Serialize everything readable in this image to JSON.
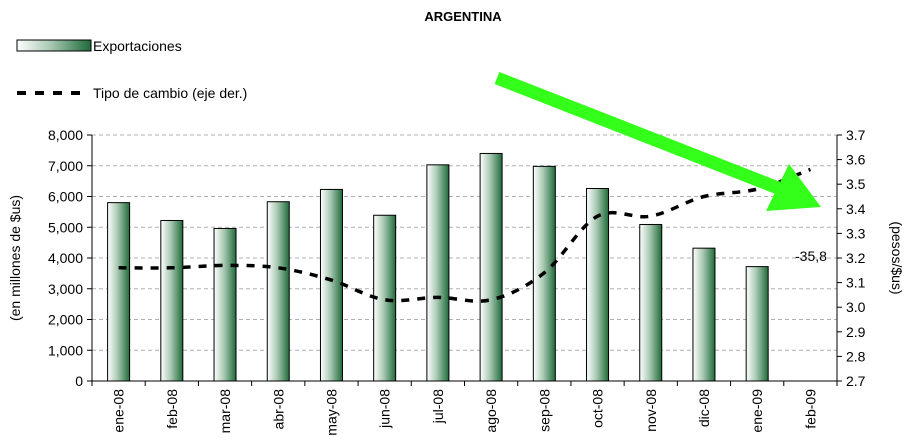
{
  "chart_data": {
    "type": "bar",
    "title": "ARGENTINA",
    "categories": [
      "ene-08",
      "feb-08",
      "mar-08",
      "abr-08",
      "may-08",
      "jun-08",
      "jul-08",
      "ago-08",
      "sep-08",
      "oct-08",
      "nov-08",
      "dic-08",
      "ene-09",
      "feb-09"
    ],
    "series": [
      {
        "name": "Exportaciones",
        "kind": "bar",
        "axis": "left",
        "values": [
          5800,
          5220,
          4960,
          5830,
          6230,
          5390,
          7030,
          7400,
          6980,
          6260,
          5090,
          4320,
          3720,
          null
        ]
      },
      {
        "name": "Tipo de cambio (eje der.)",
        "kind": "line",
        "style": "dashed",
        "axis": "right",
        "values": [
          3.16,
          3.16,
          3.17,
          3.16,
          3.11,
          3.03,
          3.04,
          3.03,
          3.14,
          3.37,
          3.37,
          3.45,
          3.48,
          3.56
        ]
      }
    ],
    "ylabel": "(en millones de $us)",
    "ylabel_right": "(pesos/$us)",
    "ylim": [
      0,
      8000
    ],
    "ylim_right": [
      2.7,
      3.7
    ],
    "yticks": [
      "0",
      "1,000",
      "2,000",
      "3,000",
      "4,000",
      "5,000",
      "6,000",
      "7,000",
      "8,000"
    ],
    "yticks_right": [
      "2.7",
      "2.8",
      "2.9",
      "3.0",
      "3.1",
      "3.2",
      "3.3",
      "3.4",
      "3.5",
      "3.6",
      "3.7"
    ],
    "grid": true,
    "legend_position": "top-left",
    "annotation": "-35,8",
    "colors": {
      "bar_dark": "#1f6b3a",
      "bar_light": "#ffffff",
      "line": "#000000",
      "arrow": "#33ff1a",
      "grid": "#b0b0b0"
    }
  }
}
